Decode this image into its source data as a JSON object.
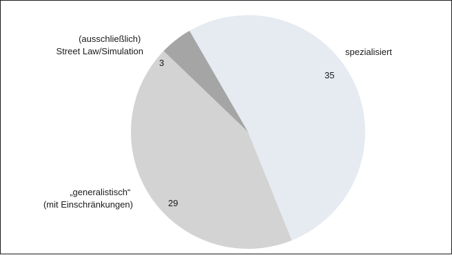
{
  "chart_data": {
    "type": "pie",
    "title": "",
    "slices": [
      {
        "label": "spezialisiert",
        "value": 35,
        "color": "#e6ebf2"
      },
      {
        "label": "„generalistisch“ (mit Einschränkungen)",
        "value": 29,
        "color": "#d3d3d3"
      },
      {
        "label": "(ausschließlich) Street Law/Simulation",
        "value": 3,
        "color": "#a5a5a5"
      }
    ],
    "legend": "none"
  },
  "labels": {
    "spezialisiert": [
      "spezialisiert"
    ],
    "generalistisch": [
      "„generalistisch“",
      "(mit Einschränkungen)"
    ],
    "streetlaw": [
      "(ausschließlich)",
      "Street Law/Simulation"
    ]
  },
  "values": {
    "spezialisiert": "35",
    "generalistisch": "29",
    "streetlaw": "3"
  }
}
